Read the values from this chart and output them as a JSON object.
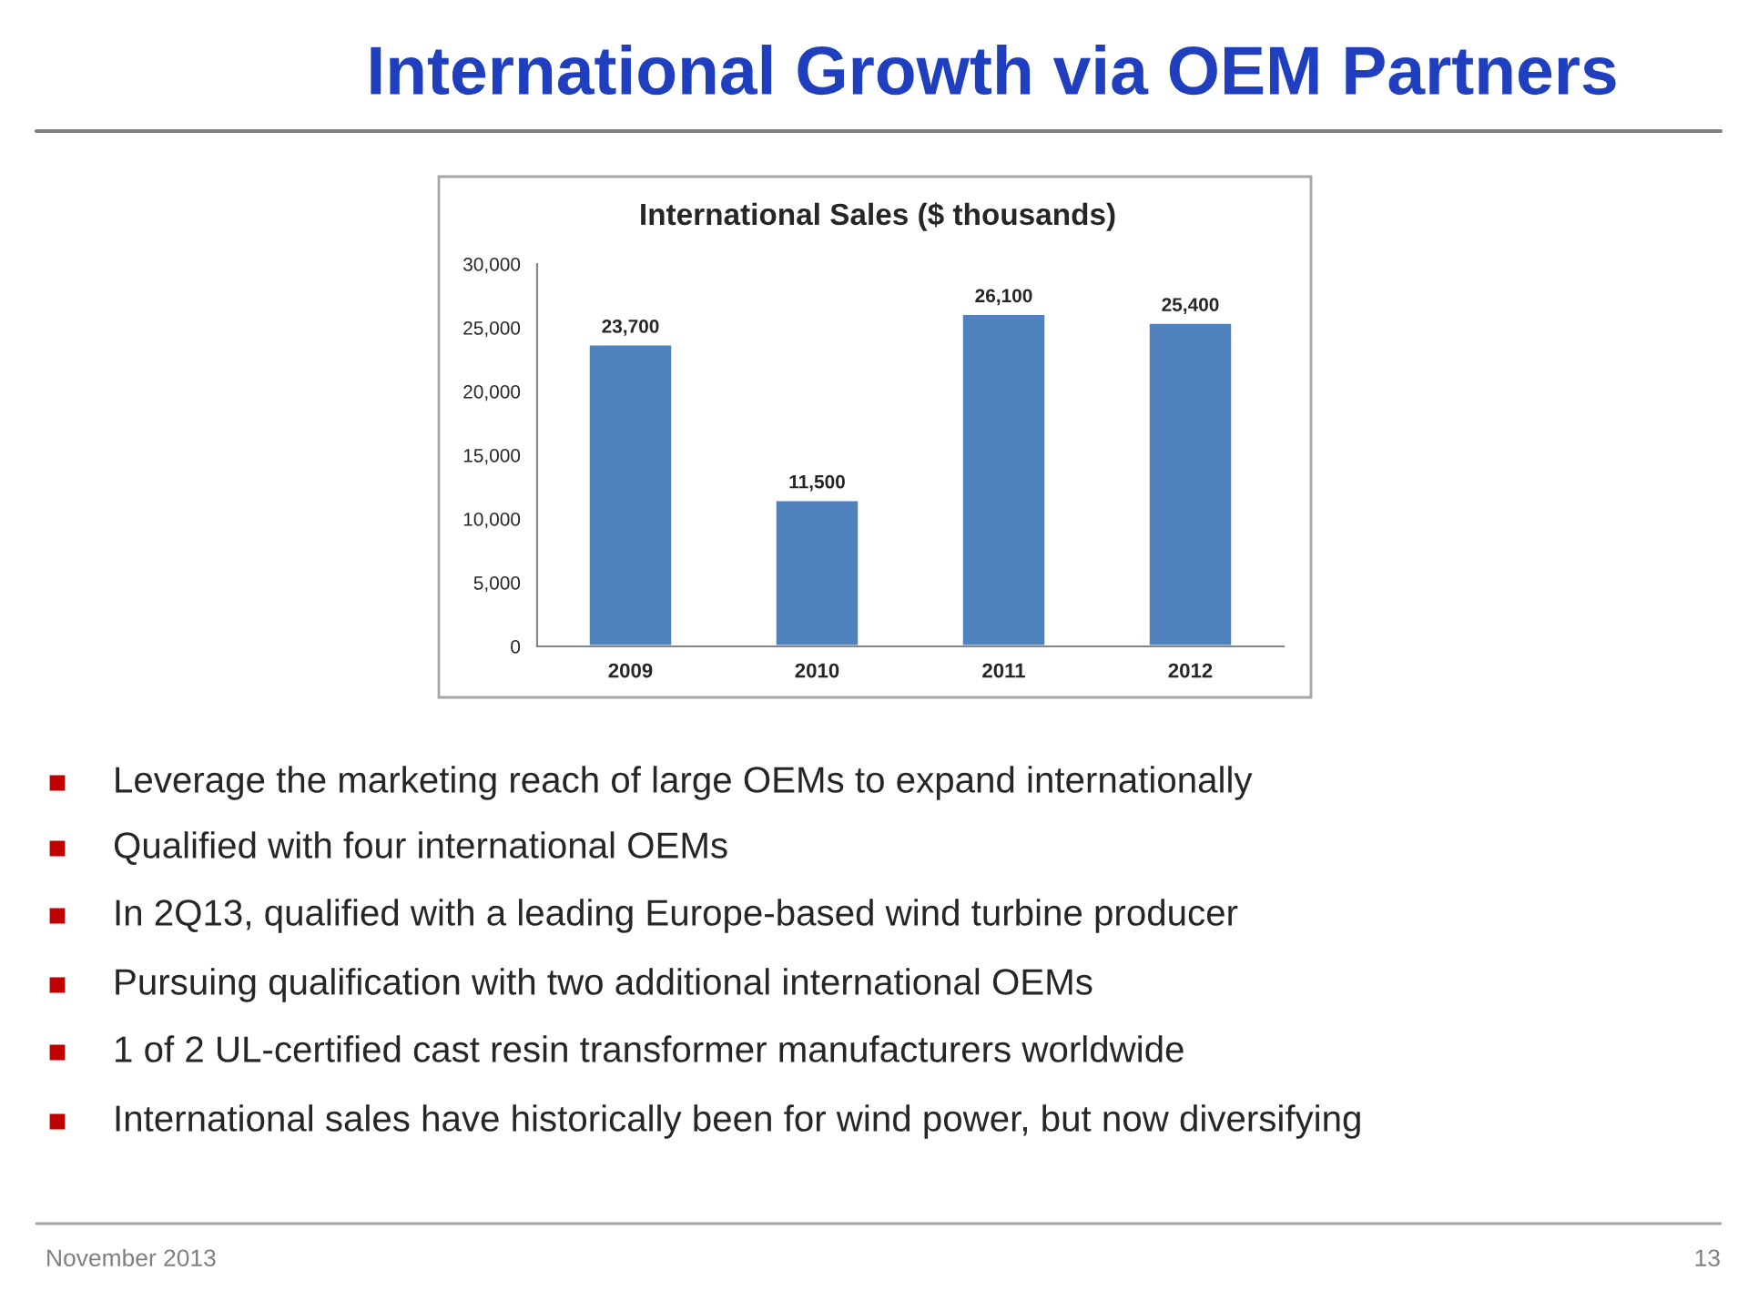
{
  "chart_data": {
    "type": "bar",
    "subtitle": "International Growth via OEM Partners",
    "title": "International Sales ($ thousands)",
    "categories": [
      "2009",
      "2010",
      "2011",
      "2012"
    ],
    "values": [
      23700,
      11500,
      26100,
      25400
    ],
    "value_labels": [
      "23,700",
      "11,500",
      "26,100",
      "25,400"
    ],
    "color": "#4f81bd",
    "ylim": [
      0,
      30000
    ],
    "yticks": [
      {
        "value": 0,
        "label": "0"
      },
      {
        "value": 5000,
        "label": "5,000"
      },
      {
        "value": 10000,
        "label": "10,000"
      },
      {
        "value": 15000,
        "label": "15,000"
      },
      {
        "value": 20000,
        "label": "20,000"
      },
      {
        "value": 25000,
        "label": "25,000"
      },
      {
        "value": 30000,
        "label": "30,000"
      }
    ],
    "grid": false,
    "annotations": [
      "Leverage the marketing reach of large OEMs to expand internationally",
      "Qualified with four international OEMs",
      "In 2Q13, qualified with a leading Europe-based wind turbine producer",
      "Pursuing qualification with two additional international OEMs",
      "1 of 2 UL-certified cast resin transformer manufacturers worldwide",
      "International sales have historically been for wind power, but now diversifying",
      "November 2013",
      "13"
    ]
  }
}
